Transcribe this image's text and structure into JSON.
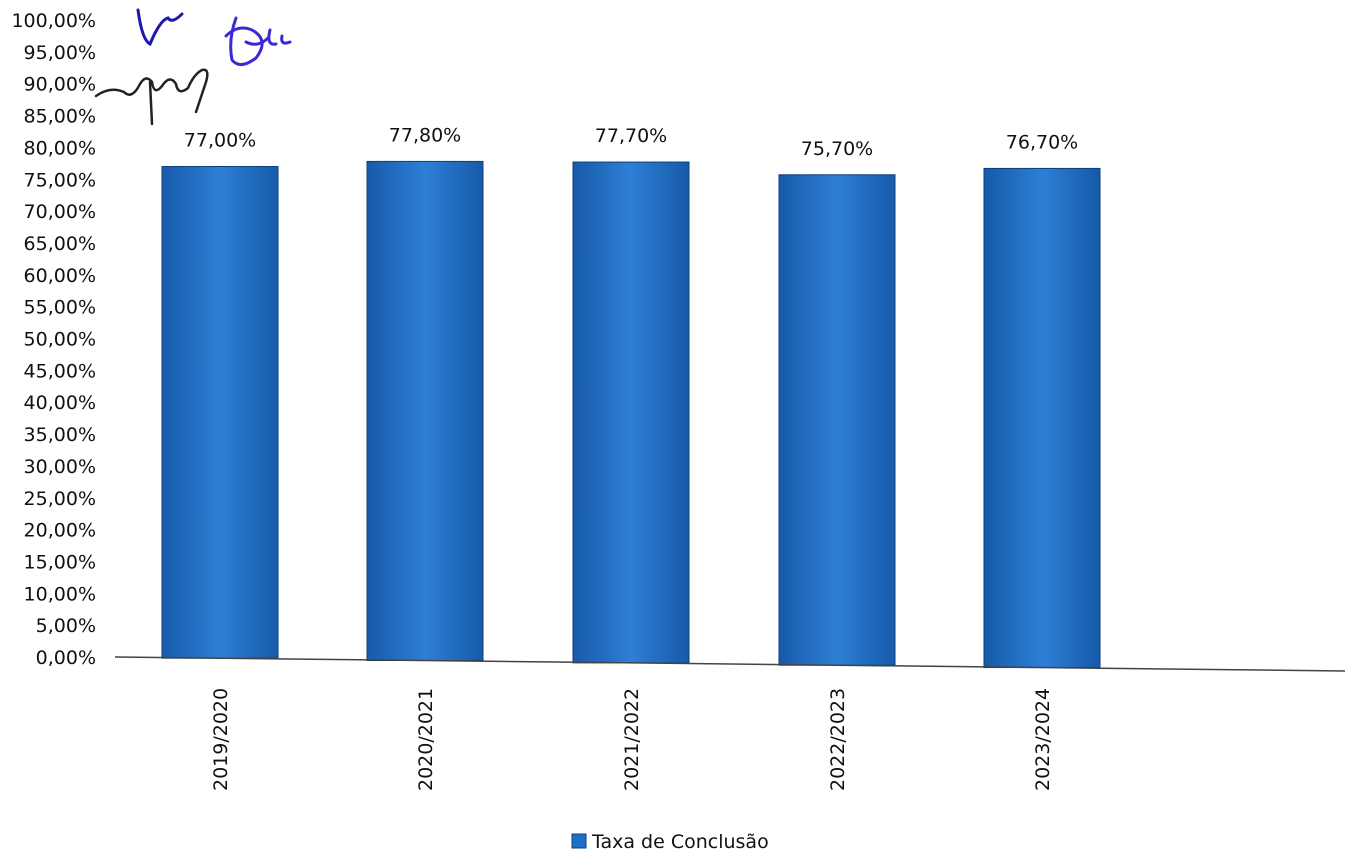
{
  "chart_data": {
    "type": "bar",
    "categories": [
      "2019/2020",
      "2020/2021",
      "2021/2022",
      "2022/2023",
      "2023/2024"
    ],
    "series": [
      {
        "name": "Taxa de Conclusão",
        "values": [
          77.0,
          77.8,
          77.7,
          75.7,
          76.7
        ],
        "labels": [
          "77,00%",
          "77,80%",
          "77,70%",
          "75,70%",
          "76,70%"
        ],
        "color": "#1f6fc9"
      }
    ],
    "ylim": [
      0,
      100
    ],
    "yticks": [
      0,
      5,
      10,
      15,
      20,
      25,
      30,
      35,
      40,
      45,
      50,
      55,
      60,
      65,
      70,
      75,
      80,
      85,
      90,
      95,
      100
    ],
    "ytick_labels": [
      "0,00%",
      "5,00%",
      "10,00%",
      "15,00%",
      "20,00%",
      "25,00%",
      "30,00%",
      "35,00%",
      "40,00%",
      "45,00%",
      "50,00%",
      "55,00%",
      "60,00%",
      "65,00%",
      "70,00%",
      "75,00%",
      "80,00%",
      "85,00%",
      "90,00%",
      "95,00%",
      "100,00%"
    ],
    "legend": {
      "label": "Taxa de Conclusão",
      "position": "bottom-center"
    },
    "grid": false,
    "xtick_rotation": "vertical"
  }
}
